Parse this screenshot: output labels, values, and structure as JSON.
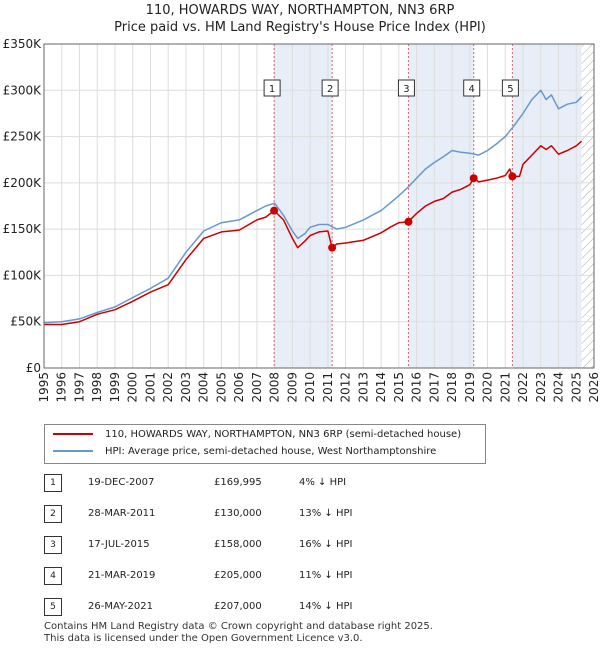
{
  "header": {
    "line1": "110, HOWARDS WAY, NORTHAMPTON, NN3 6RP",
    "line2": "Price paid vs. HM Land Registry's House Price Index (HPI)"
  },
  "colors": {
    "price_line": "#cc0000",
    "hpi_line": "#6699cc",
    "shade": "#e8eef8",
    "grid": "#dddddd",
    "future_hatch": "#aaaaaa"
  },
  "chart_data": {
    "type": "line",
    "title": "Price paid vs. HM Land Registry's House Price Index (HPI)",
    "xlabel": "",
    "ylabel": "",
    "xlim": [
      1995,
      2026
    ],
    "ylim": [
      0,
      350000
    ],
    "x_ticks": [
      1995,
      1996,
      1997,
      1998,
      1999,
      2000,
      2001,
      2002,
      2003,
      2004,
      2005,
      2006,
      2007,
      2008,
      2009,
      2010,
      2011,
      2012,
      2013,
      2014,
      2015,
      2016,
      2017,
      2018,
      2019,
      2020,
      2021,
      2022,
      2023,
      2024,
      2025,
      2026
    ],
    "y_ticks": [
      {
        "value": 0,
        "label": "£0"
      },
      {
        "value": 50000,
        "label": "£50K"
      },
      {
        "value": 100000,
        "label": "£100K"
      },
      {
        "value": 150000,
        "label": "£150K"
      },
      {
        "value": 200000,
        "label": "£200K"
      },
      {
        "value": 250000,
        "label": "£250K"
      },
      {
        "value": 300000,
        "label": "£300K"
      },
      {
        "value": 350000,
        "label": "£350K"
      }
    ],
    "grid": true,
    "shaded_ranges": [
      [
        2007.97,
        2011.24
      ],
      [
        2015.54,
        2019.22
      ],
      [
        2021.4,
        2025.3
      ]
    ],
    "future_from": 2025.3,
    "series": [
      {
        "name": "110, HOWARDS WAY, NORTHAMPTON, NN3 6RP (semi-detached house)",
        "key": "price",
        "x": [
          1995.0,
          1996.0,
          1997.0,
          1998.0,
          1999.0,
          2000.0,
          2001.0,
          2002.0,
          2003.0,
          2004.0,
          2005.0,
          2006.0,
          2007.0,
          2007.5,
          2007.97,
          2008.5,
          2009.0,
          2009.3,
          2009.7,
          2010.0,
          2010.5,
          2011.0,
          2011.24,
          2011.5,
          2012.0,
          2013.0,
          2014.0,
          2014.5,
          2015.0,
          2015.54,
          2016.0,
          2016.5,
          2017.0,
          2017.5,
          2018.0,
          2018.5,
          2019.0,
          2019.22,
          2019.5,
          2020.0,
          2020.5,
          2021.0,
          2021.25,
          2021.4,
          2021.8,
          2022.0,
          2022.5,
          2023.0,
          2023.3,
          2023.6,
          2024.0,
          2024.5,
          2025.0,
          2025.3
        ],
        "y": [
          47000,
          47000,
          50000,
          58000,
          63000,
          72000,
          82000,
          90000,
          117000,
          140000,
          147000,
          149000,
          160000,
          163000,
          169995,
          160000,
          140000,
          130000,
          137000,
          143000,
          147000,
          148000,
          130000,
          134000,
          135000,
          138000,
          146000,
          152000,
          157000,
          158000,
          167000,
          175000,
          180000,
          183000,
          190000,
          193000,
          198000,
          205000,
          201000,
          203000,
          205000,
          208000,
          215000,
          207000,
          207000,
          220000,
          230000,
          240000,
          236000,
          240000,
          231000,
          235000,
          240000,
          245000
        ]
      },
      {
        "name": "HPI: Average price, semi-detached house, West Northamptonshire",
        "key": "hpi",
        "x": [
          1995.0,
          1996.0,
          1997.0,
          1998.0,
          1999.0,
          2000.0,
          2001.0,
          2002.0,
          2003.0,
          2004.0,
          2005.0,
          2006.0,
          2007.0,
          2007.5,
          2008.0,
          2008.5,
          2009.0,
          2009.3,
          2009.7,
          2010.0,
          2010.5,
          2011.0,
          2011.5,
          2012.0,
          2013.0,
          2014.0,
          2014.5,
          2015.0,
          2015.5,
          2016.0,
          2016.5,
          2017.0,
          2017.5,
          2018.0,
          2018.5,
          2019.0,
          2019.5,
          2020.0,
          2020.5,
          2021.0,
          2021.5,
          2022.0,
          2022.5,
          2023.0,
          2023.3,
          2023.6,
          2024.0,
          2024.5,
          2025.0,
          2025.3
        ],
        "y": [
          49000,
          50000,
          53000,
          60000,
          66000,
          76000,
          86000,
          97000,
          125000,
          148000,
          157000,
          160000,
          170000,
          175000,
          178000,
          165000,
          148000,
          140000,
          145000,
          152000,
          155000,
          155000,
          150000,
          152000,
          160000,
          170000,
          178000,
          186000,
          195000,
          205000,
          215000,
          222000,
          228000,
          235000,
          233000,
          232000,
          230000,
          235000,
          242000,
          250000,
          262000,
          275000,
          290000,
          300000,
          290000,
          295000,
          280000,
          285000,
          287000,
          293000
        ]
      }
    ],
    "markers": [
      {
        "label": "1",
        "x": 2007.97,
        "y": 169995
      },
      {
        "label": "2",
        "x": 2011.24,
        "y": 130000
      },
      {
        "label": "3",
        "x": 2015.54,
        "y": 158000
      },
      {
        "label": "4",
        "x": 2019.22,
        "y": 205000
      },
      {
        "label": "5",
        "x": 2021.4,
        "y": 207000
      }
    ]
  },
  "legend": {
    "items": [
      {
        "label": "110, HOWARDS WAY, NORTHAMPTON, NN3 6RP (semi-detached house)"
      },
      {
        "label": "HPI: Average price, semi-detached house, West Northamptonshire"
      }
    ]
  },
  "transactions": [
    {
      "num": "1",
      "date": "19-DEC-2007",
      "price": "£169,995",
      "hpi": "4% ↓ HPI"
    },
    {
      "num": "2",
      "date": "28-MAR-2011",
      "price": "£130,000",
      "hpi": "13% ↓ HPI"
    },
    {
      "num": "3",
      "date": "17-JUL-2015",
      "price": "£158,000",
      "hpi": "16% ↓ HPI"
    },
    {
      "num": "4",
      "date": "21-MAR-2019",
      "price": "£205,000",
      "hpi": "11% ↓ HPI"
    },
    {
      "num": "5",
      "date": "26-MAY-2021",
      "price": "£207,000",
      "hpi": "14% ↓ HPI"
    }
  ],
  "footer": {
    "line1": "Contains HM Land Registry data © Crown copyright and database right 2025.",
    "line2": "This data is licensed under the Open Government Licence v3.0."
  }
}
